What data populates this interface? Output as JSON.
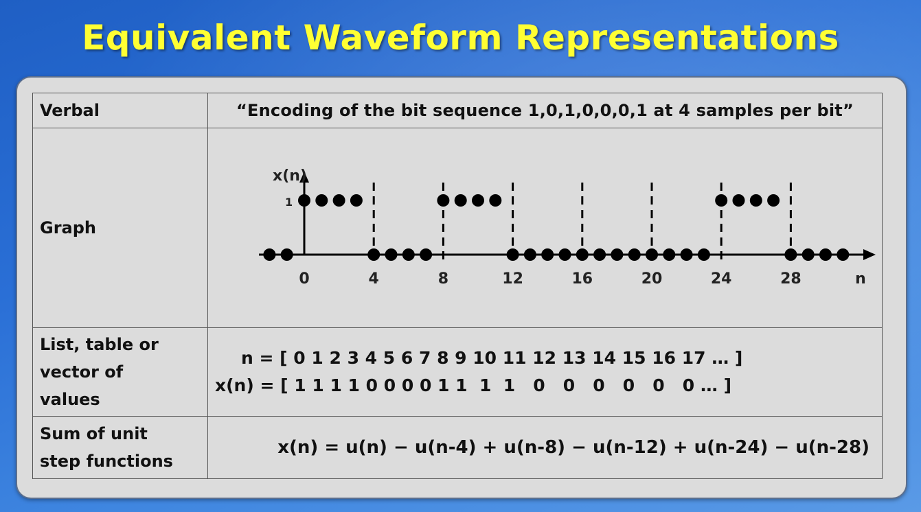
{
  "title": "Equivalent Waveform Representations",
  "rows": {
    "verbal": {
      "label": "Verbal",
      "text": "“Encoding of the bit sequence 1,0,1,0,0,0,1 at 4 samples per bit”"
    },
    "graph": {
      "label": "Graph"
    },
    "list": {
      "label_lines": [
        "List, table or",
        "vector of",
        "values"
      ],
      "n_line": "n = [ 0 1 2 3 4 5 6 7 8 9 10 11 12 13 14 15 16 17 … ]",
      "x_line": "x(n) = [ 1 1 1 1 0 0 0 0 1 1  1  1   0   0   0   0   0   0 … ]"
    },
    "sum": {
      "label_lines": [
        "Sum of unit",
        "step functions"
      ],
      "text": "x(n) = u(n) − u(n-4) + u(n-8) − u(n-12) + u(n-24) − u(n-28)"
    }
  },
  "chart_data": {
    "type": "scatter",
    "style": "stem-dots",
    "ylabel": "x(n)",
    "xlabel": "n",
    "y_tick": "1",
    "x_ticks": [
      0,
      4,
      8,
      12,
      16,
      20,
      24,
      28
    ],
    "x_tick_labels": [
      "0",
      "4",
      "8",
      "12",
      "16",
      "20",
      "24",
      "28"
    ],
    "dashed_lines_at": [
      4,
      8,
      12,
      16,
      20,
      24,
      28
    ],
    "points": [
      {
        "n": -2,
        "x": 0
      },
      {
        "n": -1,
        "x": 0
      },
      {
        "n": 0,
        "x": 1
      },
      {
        "n": 1,
        "x": 1
      },
      {
        "n": 2,
        "x": 1
      },
      {
        "n": 3,
        "x": 1
      },
      {
        "n": 4,
        "x": 0
      },
      {
        "n": 5,
        "x": 0
      },
      {
        "n": 6,
        "x": 0
      },
      {
        "n": 7,
        "x": 0
      },
      {
        "n": 8,
        "x": 1
      },
      {
        "n": 9,
        "x": 1
      },
      {
        "n": 10,
        "x": 1
      },
      {
        "n": 11,
        "x": 1
      },
      {
        "n": 12,
        "x": 0
      },
      {
        "n": 13,
        "x": 0
      },
      {
        "n": 14,
        "x": 0
      },
      {
        "n": 15,
        "x": 0
      },
      {
        "n": 16,
        "x": 0
      },
      {
        "n": 17,
        "x": 0
      },
      {
        "n": 18,
        "x": 0
      },
      {
        "n": 19,
        "x": 0
      },
      {
        "n": 20,
        "x": 0
      },
      {
        "n": 21,
        "x": 0
      },
      {
        "n": 22,
        "x": 0
      },
      {
        "n": 23,
        "x": 0
      },
      {
        "n": 24,
        "x": 1
      },
      {
        "n": 25,
        "x": 1
      },
      {
        "n": 26,
        "x": 1
      },
      {
        "n": 27,
        "x": 1
      },
      {
        "n": 28,
        "x": 0
      },
      {
        "n": 29,
        "x": 0
      },
      {
        "n": 30,
        "x": 0
      },
      {
        "n": 31,
        "x": 0
      }
    ]
  }
}
